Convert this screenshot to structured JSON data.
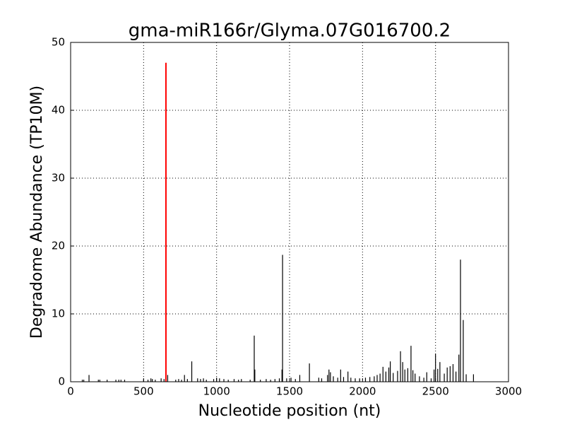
{
  "chart_data": {
    "type": "stem",
    "title": "gma-miR166r/Glyma.07G016700.2",
    "xlabel": "Nucleotide position (nt)",
    "ylabel": "Degradome Abundance (TP10M)",
    "xlim": [
      0,
      3000
    ],
    "xticks": [
      0,
      500,
      1000,
      1500,
      2000,
      2500,
      3000
    ],
    "ylim": [
      0,
      50
    ],
    "yticks": [
      0,
      10,
      20,
      30,
      40,
      50
    ],
    "grid": true,
    "series": [
      {
        "color": "#000000",
        "x": [
          80,
          90,
          126,
          190,
          200,
          250,
          310,
          330,
          345,
          370,
          500,
          530,
          550,
          560,
          580,
          620,
          640,
          665,
          720,
          740,
          760,
          780,
          800,
          830,
          870,
          890,
          910,
          930,
          980,
          1000,
          1020,
          1050,
          1080,
          1120,
          1150,
          1170,
          1230,
          1258,
          1262,
          1300,
          1340,
          1370,
          1400,
          1430,
          1448,
          1452,
          1480,
          1510,
          1540,
          1570,
          1636,
          1700,
          1720,
          1760,
          1770,
          1780,
          1800,
          1830,
          1850,
          1870,
          1900,
          1920,
          1950,
          1980,
          2020,
          2050,
          2080,
          2100,
          2120,
          2140,
          2160,
          2180,
          2190,
          2210,
          2240,
          2260,
          2275,
          2290,
          2310,
          2332,
          2345,
          2360,
          2390,
          2420,
          2440,
          2470,
          2490,
          2500,
          2515,
          2530,
          2560,
          2580,
          2600,
          2620,
          2640,
          2660,
          2671,
          2690,
          2710,
          2760
        ],
        "values": [
          0.3,
          0.3,
          1,
          0.3,
          0.3,
          0.3,
          0.3,
          0.3,
          0.3,
          0.3,
          0.3,
          0.3,
          0.5,
          0.4,
          0.3,
          0.5,
          0.4,
          1,
          0.3,
          0.4,
          0.3,
          1,
          0.4,
          3,
          0.5,
          0.4,
          0.5,
          0.3,
          0.4,
          0.6,
          0.5,
          0.4,
          0.3,
          0.4,
          0.3,
          0.4,
          0.3,
          6.8,
          1.8,
          0.3,
          0.4,
          0.3,
          0.4,
          0.5,
          1.8,
          18.7,
          0.5,
          0.6,
          0.4,
          1,
          2.7,
          0.6,
          0.5,
          1,
          1.8,
          1.4,
          0.8,
          0.6,
          1.8,
          0.7,
          1.5,
          0.6,
          0.5,
          0.5,
          0.6,
          0.7,
          0.8,
          1,
          1.2,
          2.2,
          1.5,
          2.1,
          3,
          1.3,
          1.6,
          4.5,
          2.9,
          1.8,
          2,
          5.3,
          1.7,
          1.2,
          0.8,
          0.6,
          1.4,
          0.5,
          1.8,
          4.1,
          1.9,
          2.9,
          1.2,
          2.1,
          2.3,
          2.6,
          1.5,
          4,
          18,
          9.1,
          1.1,
          1.1
        ]
      },
      {
        "color": "#ff0000",
        "x": [
          653
        ],
        "values": [
          47
        ]
      }
    ]
  }
}
